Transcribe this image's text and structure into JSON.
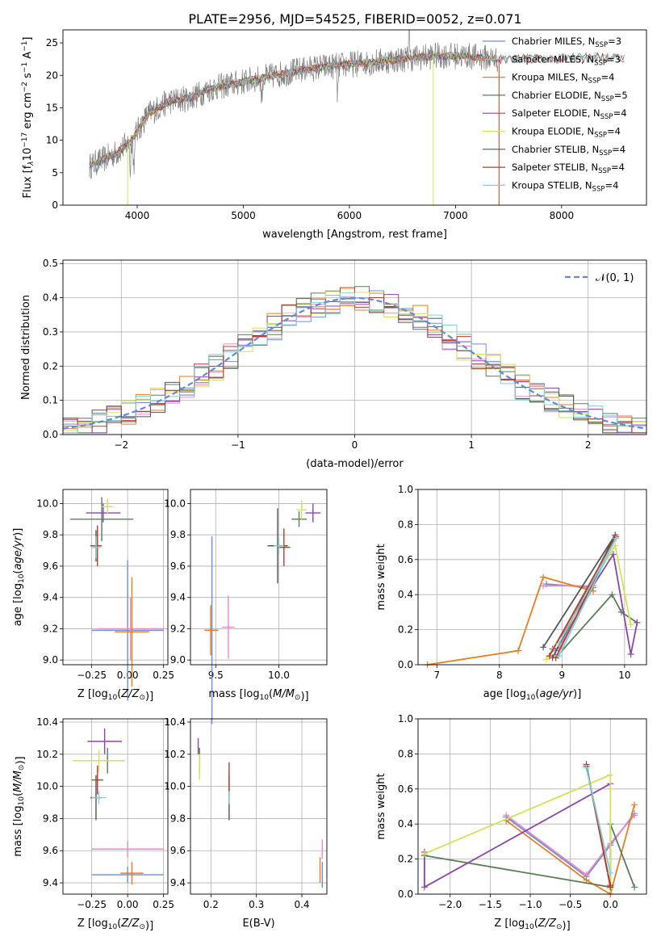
{
  "figure_title": "PLATE=2956, MJD=54525, FIBERID=0052, z=0.071",
  "colors": {
    "Chabrier MILES": "#6b8fd6",
    "Salpeter MILES": "#e88ac4",
    "Kroupa MILES": "#e67e22",
    "Chabrier ELODIE": "#5a7d5a",
    "Salpeter ELODIE": "#8e44ad",
    "Kroupa ELODIE": "#d4e157",
    "Chabrier STELIB": "#555555",
    "Salpeter STELIB": "#c0392b",
    "Kroupa STELIB": "#7fd1d6",
    "normal": "#5b8dd9"
  },
  "chart_data": [
    {
      "id": "spectrum",
      "type": "line",
      "xlabel": "wavelength [Angstrom, rest frame]",
      "ylabel_parts": [
        "Flux [f",
        "λ",
        "10",
        "−17",
        " erg cm",
        "−2",
        " s",
        "−1",
        " A",
        "−1",
        "]"
      ],
      "xlim": [
        3300,
        8800
      ],
      "ylim": [
        0,
        27
      ],
      "xticks": [
        4000,
        5000,
        6000,
        7000,
        8000
      ],
      "yticks": [
        0,
        5,
        10,
        15,
        20,
        25
      ],
      "legend": {
        "placement": "top-right",
        "entries": [
          {
            "name": "Chabrier MILES",
            "n": "3"
          },
          {
            "name": "Salpeter MILES",
            "n": "3"
          },
          {
            "name": "Kroupa MILES",
            "n": "4"
          },
          {
            "name": "Chabrier ELODIE",
            "n": "5"
          },
          {
            "name": "Salpeter ELODIE",
            "n": "4"
          },
          {
            "name": "Kroupa ELODIE",
            "n": "4"
          },
          {
            "name": "Chabrier STELIB",
            "n": "4"
          },
          {
            "name": "Salpeter STELIB",
            "n": "4"
          },
          {
            "name": "Kroupa STELIB",
            "n": "4"
          }
        ],
        "n_label_prefix": ", N",
        "n_label_sub": "SSP",
        "n_label_eq": "="
      },
      "continuum": {
        "x": [
          3550,
          3800,
          3950,
          4100,
          4300,
          4500,
          4700,
          5000,
          5300,
          5600,
          5900,
          6200,
          6500,
          6800,
          7100,
          7400
        ],
        "y": [
          6,
          8,
          10,
          14,
          16,
          16.5,
          18,
          19,
          20,
          21,
          21.5,
          22,
          22.5,
          23,
          23,
          22.5
        ]
      },
      "models_end": {
        "x": [
          7400,
          8600
        ],
        "y": [
          22.5,
          22.8
        ]
      }
    },
    {
      "id": "residuals",
      "type": "histogram",
      "xlabel": "(data-model)/error",
      "ylabel": "Normed distribution",
      "xlim": [
        -2.5,
        2.5
      ],
      "ylim": [
        0,
        0.51
      ],
      "xticks": [
        -2,
        -1,
        0,
        1,
        2
      ],
      "yticks": [
        0.0,
        0.1,
        0.2,
        0.3,
        0.4,
        0.5
      ],
      "grid": true,
      "bin_edges_range": [
        -2.5,
        2.5
      ],
      "n_bins": 40,
      "legend": {
        "placement": "top-right",
        "entries": [
          {
            "name": "𝒩(0, 1)"
          }
        ]
      },
      "normal": {
        "mean": 0,
        "sigma": 1
      }
    },
    {
      "id": "age_vs_Z",
      "type": "errorbar",
      "xlabel": "Z [log10(Z/Z⊙)]",
      "ylabel": "age  [log10(age/yr)]",
      "xlim": [
        -0.45,
        0.28
      ],
      "ylim": [
        8.97,
        10.09
      ],
      "xticks": [
        -0.25,
        0.0,
        0.25
      ],
      "yticks": [
        9.0,
        9.2,
        9.4,
        9.6,
        9.8,
        10.0
      ],
      "grid": true,
      "points": [
        {
          "model": "Chabrier MILES",
          "x": 0.0,
          "y": 9.19,
          "xerr": 0.25,
          "yerr": 0.45
        },
        {
          "model": "Salpeter MILES",
          "x": 0.02,
          "y": 9.2,
          "xerr": 0.23,
          "yerr": 0.2
        },
        {
          "model": "Kroupa MILES",
          "x": 0.03,
          "y": 9.18,
          "xerr": 0.12,
          "yerr": 0.35
        },
        {
          "model": "Chabrier ELODIE",
          "x": -0.18,
          "y": 9.9,
          "xerr": 0.22,
          "yerr": 0.14
        },
        {
          "model": "Salpeter ELODIE",
          "x": -0.17,
          "y": 9.94,
          "xerr": 0.12,
          "yerr": 0.06
        },
        {
          "model": "Kroupa ELODIE",
          "x": -0.14,
          "y": 9.98,
          "xerr": 0.04,
          "yerr": 0.05
        },
        {
          "model": "Chabrier STELIB",
          "x": -0.22,
          "y": 9.73,
          "xerr": 0.04,
          "yerr": 0.1
        },
        {
          "model": "Salpeter STELIB",
          "x": -0.21,
          "y": 9.73,
          "xerr": 0.03,
          "yerr": 0.13
        },
        {
          "model": "Kroupa STELIB",
          "x": -0.22,
          "y": 9.72,
          "xerr": 0.03,
          "yerr": 0.07
        }
      ]
    },
    {
      "id": "age_vs_mass",
      "type": "errorbar",
      "xlabel": "mass [log10(M/M⊙)]",
      "ylabel": "",
      "xlim": [
        9.3,
        10.38
      ],
      "ylim": [
        8.97,
        10.09
      ],
      "xticks": [
        9.5,
        10.0
      ],
      "yticks": [
        9.0,
        9.2,
        9.4,
        9.6,
        9.8,
        10.0
      ],
      "grid": true,
      "points": [
        {
          "model": "Chabrier MILES",
          "x": 9.47,
          "y": 9.19,
          "xerr": 0.05,
          "yerr": 0.6
        },
        {
          "model": "Salpeter MILES",
          "x": 9.6,
          "y": 9.21,
          "xerr": 0.05,
          "yerr": 0.2
        },
        {
          "model": "Kroupa MILES",
          "x": 9.46,
          "y": 9.19,
          "xerr": 0.05,
          "yerr": 0.16
        },
        {
          "model": "Chabrier ELODIE",
          "x": 10.16,
          "y": 9.9,
          "xerr": 0.06,
          "yerr": 0.05
        },
        {
          "model": "Salpeter ELODIE",
          "x": 10.27,
          "y": 9.94,
          "xerr": 0.06,
          "yerr": 0.06
        },
        {
          "model": "Kroupa ELODIE",
          "x": 10.18,
          "y": 9.96,
          "xerr": 0.04,
          "yerr": 0.06
        },
        {
          "model": "Chabrier STELIB",
          "x": 9.99,
          "y": 9.73,
          "xerr": 0.08,
          "yerr": 0.24
        },
        {
          "model": "Salpeter STELIB",
          "x": 10.04,
          "y": 9.72,
          "xerr": 0.05,
          "yerr": 0.12
        },
        {
          "model": "Kroupa STELIB",
          "x": 10.0,
          "y": 9.73,
          "xerr": 0.04,
          "yerr": 0.05
        }
      ]
    },
    {
      "id": "weight_vs_age",
      "type": "line",
      "xlabel": "age  [log10(age/yr)]",
      "ylabel": "mass weight",
      "xlim": [
        6.7,
        10.35
      ],
      "ylim": [
        0,
        1.0
      ],
      "xticks": [
        7,
        8,
        9,
        10
      ],
      "yticks": [
        0.0,
        0.2,
        0.4,
        0.6,
        0.8,
        1.0
      ],
      "grid": true,
      "series": [
        {
          "model": "Chabrier MILES",
          "x": [
            8.75,
            9.5,
            8.9
          ],
          "y": [
            0.46,
            0.44,
            0.08
          ]
        },
        {
          "model": "Salpeter MILES",
          "x": [
            8.7,
            9.5,
            8.95
          ],
          "y": [
            0.45,
            0.45,
            0.09
          ]
        },
        {
          "model": "Kroupa MILES",
          "x": [
            6.85,
            8.3,
            8.7,
            9.5
          ],
          "y": [
            0.0,
            0.08,
            0.5,
            0.42
          ]
        },
        {
          "model": "Chabrier ELODIE",
          "x": [
            8.9,
            9.8,
            9.95,
            10.2
          ],
          "y": [
            0.04,
            0.4,
            0.3,
            0.24
          ]
        },
        {
          "model": "Salpeter ELODIE",
          "x": [
            8.85,
            9.82,
            10.1,
            10.2
          ],
          "y": [
            0.09,
            0.63,
            0.06,
            0.24
          ]
        },
        {
          "model": "Kroupa ELODIE",
          "x": [
            8.75,
            9.85,
            10.1
          ],
          "y": [
            0.03,
            0.68,
            0.23
          ]
        },
        {
          "model": "Chabrier STELIB",
          "x": [
            8.7,
            9.85,
            8.85
          ],
          "y": [
            0.1,
            0.74,
            0.04
          ]
        },
        {
          "model": "Salpeter STELIB",
          "x": [
            8.8,
            9.86,
            8.9
          ],
          "y": [
            0.05,
            0.73,
            0.04
          ]
        },
        {
          "model": "Kroupa STELIB",
          "x": [
            8.95,
            9.86,
            8.95
          ],
          "y": [
            0.12,
            0.72,
            0.05
          ]
        }
      ]
    },
    {
      "id": "mass_vs_Z",
      "type": "errorbar",
      "xlabel": "Z [log10(Z/Z⊙)]",
      "ylabel": "mass [log10(M/M⊙)]",
      "xlim": [
        -0.45,
        0.28
      ],
      "ylim": [
        9.33,
        10.42
      ],
      "xticks": [
        -0.25,
        0.0,
        0.25
      ],
      "yticks": [
        9.4,
        9.6,
        9.8,
        10.0,
        10.2,
        10.4
      ],
      "grid": true,
      "points": [
        {
          "model": "Chabrier MILES",
          "x": 0.0,
          "y": 9.45,
          "xerr": 0.25,
          "yerr": 0.05
        },
        {
          "model": "Salpeter MILES",
          "x": 0.0,
          "y": 9.61,
          "xerr": 0.25,
          "yerr": 0.05
        },
        {
          "model": "Kroupa MILES",
          "x": 0.03,
          "y": 9.46,
          "xerr": 0.08,
          "yerr": 0.07
        },
        {
          "model": "Chabrier ELODIE",
          "x": -0.14,
          "y": 10.16,
          "xerr": 0.06,
          "yerr": 0.08
        },
        {
          "model": "Salpeter ELODIE",
          "x": -0.16,
          "y": 10.28,
          "xerr": 0.12,
          "yerr": 0.08
        },
        {
          "model": "Kroupa ELODIE",
          "x": -0.2,
          "y": 10.16,
          "xerr": 0.18,
          "yerr": 0.07
        },
        {
          "model": "Chabrier STELIB",
          "x": -0.22,
          "y": 9.93,
          "xerr": 0.04,
          "yerr": 0.14
        },
        {
          "model": "Salpeter STELIB",
          "x": -0.21,
          "y": 10.04,
          "xerr": 0.04,
          "yerr": 0.09
        },
        {
          "model": "Kroupa STELIB",
          "x": -0.2,
          "y": 9.93,
          "xerr": 0.05,
          "yerr": 0.04
        }
      ]
    },
    {
      "id": "mass_vs_ebv",
      "type": "errorbar",
      "xlabel": "E(B-V)",
      "ylabel": "",
      "xlim": [
        0.155,
        0.455
      ],
      "ylim": [
        9.33,
        10.42
      ],
      "xticks": [
        0.2,
        0.3,
        0.4
      ],
      "yticks": [
        9.4,
        9.6,
        9.8,
        10.0,
        10.2,
        10.4
      ],
      "grid": true,
      "points": [
        {
          "model": "Chabrier MILES",
          "x": 0.445,
          "y": 9.45,
          "xerr": 0,
          "yerr": 0.08
        },
        {
          "model": "Salpeter MILES",
          "x": 0.445,
          "y": 9.61,
          "xerr": 0,
          "yerr": 0.06
        },
        {
          "model": "Kroupa MILES",
          "x": 0.44,
          "y": 9.48,
          "xerr": 0,
          "yerr": 0.08
        },
        {
          "model": "Chabrier ELODIE",
          "x": 0.175,
          "y": 10.16,
          "xerr": 0,
          "yerr": 0.08
        },
        {
          "model": "Salpeter ELODIE",
          "x": 0.172,
          "y": 10.25,
          "xerr": 0,
          "yerr": 0.05
        },
        {
          "model": "Kroupa ELODIE",
          "x": 0.175,
          "y": 10.12,
          "xerr": 0,
          "yerr": 0.08
        },
        {
          "model": "Chabrier STELIB",
          "x": 0.24,
          "y": 9.93,
          "xerr": 0,
          "yerr": 0.14
        },
        {
          "model": "Salpeter STELIB",
          "x": 0.24,
          "y": 10.05,
          "xerr": 0,
          "yerr": 0.1
        },
        {
          "model": "Kroupa STELIB",
          "x": 0.24,
          "y": 9.93,
          "xerr": 0,
          "yerr": 0.04
        }
      ]
    },
    {
      "id": "weight_vs_Z",
      "type": "line",
      "xlabel": "Z [log10(Z/Z⊙)]",
      "ylabel": "mass weight",
      "xlim": [
        -2.4,
        0.45
      ],
      "ylim": [
        0,
        1.0
      ],
      "xticks": [
        -2.0,
        -1.5,
        -1.0,
        -0.5,
        0.0
      ],
      "yticks": [
        0.0,
        0.2,
        0.4,
        0.6,
        0.8,
        1.0
      ],
      "grid": true,
      "series": [
        {
          "model": "Chabrier MILES",
          "x": [
            -1.3,
            -0.3,
            0.0,
            0.3
          ],
          "y": [
            0.44,
            0.1,
            0.28,
            0.46
          ]
        },
        {
          "model": "Salpeter MILES",
          "x": [
            -1.3,
            -0.3,
            0.0,
            0.3
          ],
          "y": [
            0.45,
            0.11,
            0.29,
            0.45
          ]
        },
        {
          "model": "Kroupa MILES",
          "x": [
            -1.3,
            -0.3,
            0.0,
            0.3
          ],
          "y": [
            0.42,
            0.08,
            0.0,
            0.51
          ]
        },
        {
          "model": "Chabrier ELODIE",
          "x": [
            -2.32,
            0.0,
            0.0,
            0.3
          ],
          "y": [
            0.22,
            0.04,
            0.4,
            0.04
          ]
        },
        {
          "model": "Salpeter ELODIE",
          "x": [
            -2.32,
            -2.32,
            0.0
          ],
          "y": [
            0.24,
            0.04,
            0.63
          ]
        },
        {
          "model": "Kroupa ELODIE",
          "x": [
            -2.32,
            0.0,
            0.0
          ],
          "y": [
            0.23,
            0.68,
            0.03
          ]
        },
        {
          "model": "Chabrier STELIB",
          "x": [
            -0.3,
            0.0
          ],
          "y": [
            0.74,
            0.04
          ]
        },
        {
          "model": "Salpeter STELIB",
          "x": [
            -0.3,
            0.0
          ],
          "y": [
            0.73,
            0.05
          ]
        },
        {
          "model": "Kroupa STELIB",
          "x": [
            -0.3,
            0.0
          ],
          "y": [
            0.72,
            0.12
          ]
        }
      ]
    }
  ]
}
